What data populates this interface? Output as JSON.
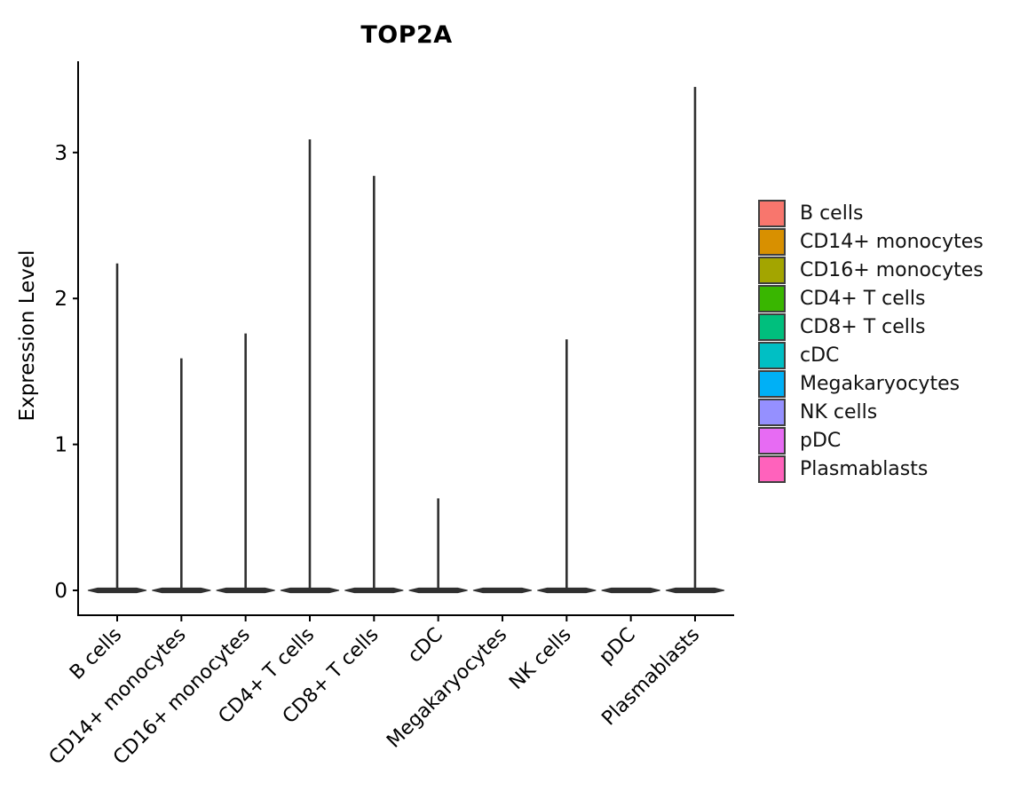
{
  "chart_data": {
    "type": "violin",
    "title": "TOP2A",
    "xlabel": "",
    "ylabel": "Expression Level",
    "y_ticks": [
      0,
      1,
      2,
      3
    ],
    "ylim": [
      0,
      3.65
    ],
    "grid": false,
    "legend_position": "right",
    "baseline_value": 0,
    "shape_note": "density mass concentrated at 0 (flat lens) with a thin spike reaching max_expression",
    "categories": [
      "B cells",
      "CD14+ monocytes",
      "CD16+ monocytes",
      "CD4+ T cells",
      "CD8+ T cells",
      "cDC",
      "Megakaryocytes",
      "NK cells",
      "pDC",
      "Plasmablasts"
    ],
    "series": [
      {
        "name": "B cells",
        "color": "#F8766D",
        "max_expression": 2.24
      },
      {
        "name": "CD14+ monocytes",
        "color": "#D89000",
        "max_expression": 1.59
      },
      {
        "name": "CD16+ monocytes",
        "color": "#A3A500",
        "max_expression": 1.76
      },
      {
        "name": "CD4+ T cells",
        "color": "#39B600",
        "max_expression": 3.09
      },
      {
        "name": "CD8+ T cells",
        "color": "#00BF7D",
        "max_expression": 2.84
      },
      {
        "name": "cDC",
        "color": "#00BFC4",
        "max_expression": 0.63
      },
      {
        "name": "Megakaryocytes",
        "color": "#00B0F6",
        "max_expression": 0
      },
      {
        "name": "NK cells",
        "color": "#9590FF",
        "max_expression": 1.72
      },
      {
        "name": "pDC",
        "color": "#E76BF3",
        "max_expression": 0
      },
      {
        "name": "Plasmablasts",
        "color": "#FF62BC",
        "max_expression": 3.45
      }
    ],
    "axis_color": "#000000",
    "violin_outline_color": "#303030"
  }
}
